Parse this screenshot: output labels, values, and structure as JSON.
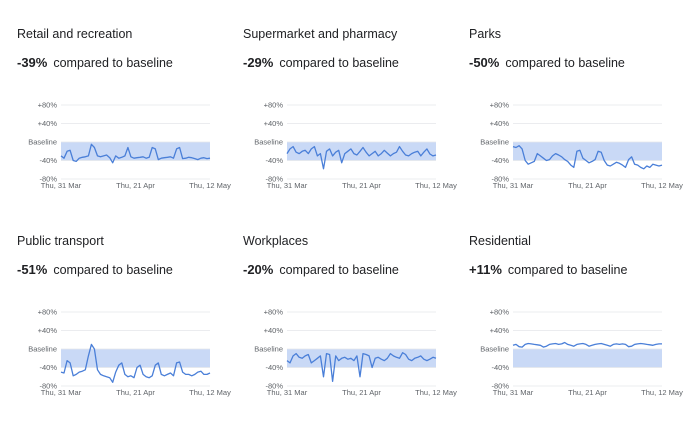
{
  "colors": {
    "line": "#4a7fd8",
    "band": "#c9d9f6",
    "grid": "#e4e6ea",
    "text": "#202124",
    "axis_text": "#5f6368"
  },
  "chart_data": [
    {
      "type": "line",
      "title": "Retail and recreation",
      "change": "-39%",
      "change_label": "compared to baseline",
      "y_tick_labels": [
        "+80%",
        "+40%",
        "Baseline",
        "-40%",
        "-80%"
      ],
      "y_ticks": [
        80,
        40,
        0,
        -40,
        -80
      ],
      "ylim": [
        -80,
        80
      ],
      "x_tick_labels": [
        "Thu, 31 Mar",
        "Thu, 21 Apr",
        "Thu, 12 May"
      ],
      "series": [
        {
          "values": [
            -30,
            -35,
            -20,
            -18,
            -40,
            -42,
            -35,
            -33,
            -32,
            -30,
            -5,
            -12,
            -30,
            -32,
            -30,
            -28,
            -34,
            -45,
            -30,
            -35,
            -33,
            -30,
            -12,
            -32,
            -35,
            -34,
            -33,
            -32,
            -35,
            -33,
            -12,
            -15,
            -38,
            -35,
            -34,
            -33,
            -32,
            -35,
            -15,
            -12,
            -36,
            -35,
            -33,
            -34,
            -36,
            -38,
            -35,
            -34,
            -36,
            -35
          ]
        }
      ]
    },
    {
      "type": "line",
      "title": "Supermarket and pharmacy",
      "change": "-29%",
      "change_label": "compared to baseline",
      "y_tick_labels": [
        "+80%",
        "+40%",
        "Baseline",
        "-40%",
        "-80%"
      ],
      "y_ticks": [
        80,
        40,
        0,
        -40,
        -80
      ],
      "ylim": [
        -80,
        80
      ],
      "x_tick_labels": [
        "Thu, 31 Mar",
        "Thu, 21 Apr",
        "Thu, 12 May"
      ],
      "series": [
        {
          "values": [
            -25,
            -15,
            -10,
            -22,
            -25,
            -20,
            -18,
            -25,
            -15,
            -10,
            -30,
            -25,
            -58,
            -20,
            -15,
            -30,
            -22,
            -18,
            -45,
            -25,
            -20,
            -15,
            -25,
            -28,
            -20,
            -12,
            -22,
            -30,
            -25,
            -20,
            -30,
            -25,
            -18,
            -24,
            -30,
            -25,
            -22,
            -10,
            -20,
            -28,
            -30,
            -25,
            -22,
            -20,
            -30,
            -22,
            -15,
            -26,
            -30,
            -28
          ]
        }
      ]
    },
    {
      "type": "line",
      "title": "Parks",
      "change": "-50%",
      "change_label": "compared to baseline",
      "y_tick_labels": [
        "+80%",
        "+40%",
        "Baseline",
        "-40%",
        "-80%"
      ],
      "y_ticks": [
        80,
        40,
        0,
        -40,
        -80
      ],
      "ylim": [
        -80,
        80
      ],
      "x_tick_labels": [
        "Thu, 31 Mar",
        "Thu, 21 Apr",
        "Thu, 12 May"
      ],
      "series": [
        {
          "values": [
            -10,
            -12,
            -8,
            -15,
            -40,
            -48,
            -45,
            -42,
            -25,
            -30,
            -35,
            -40,
            -38,
            -30,
            -25,
            -28,
            -32,
            -38,
            -42,
            -50,
            -55,
            -20,
            -18,
            -35,
            -40,
            -45,
            -42,
            -38,
            -20,
            -22,
            -40,
            -50,
            -52,
            -48,
            -44,
            -46,
            -50,
            -55,
            -38,
            -32,
            -48,
            -50,
            -55,
            -58,
            -52,
            -55,
            -48,
            -50,
            -52,
            -50
          ]
        }
      ]
    },
    {
      "type": "line",
      "title": "Public transport",
      "change": "-51%",
      "change_label": "compared to baseline",
      "y_tick_labels": [
        "+80%",
        "+40%",
        "Baseline",
        "-40%",
        "-80%"
      ],
      "y_ticks": [
        80,
        40,
        0,
        -40,
        -80
      ],
      "ylim": [
        -80,
        80
      ],
      "x_tick_labels": [
        "Thu, 31 Mar",
        "Thu, 21 Apr",
        "Thu, 12 May"
      ],
      "series": [
        {
          "values": [
            -50,
            -52,
            -25,
            -30,
            -58,
            -55,
            -50,
            -48,
            -45,
            -15,
            10,
            0,
            -45,
            -55,
            -58,
            -60,
            -62,
            -72,
            -50,
            -35,
            -30,
            -55,
            -60,
            -58,
            -62,
            -40,
            -35,
            -55,
            -60,
            -62,
            -58,
            -35,
            -30,
            -55,
            -58,
            -55,
            -52,
            -58,
            -30,
            -28,
            -50,
            -55,
            -55,
            -58,
            -55,
            -50,
            -48,
            -55,
            -55,
            -52
          ]
        }
      ]
    },
    {
      "type": "line",
      "title": "Workplaces",
      "change": "-20%",
      "change_label": "compared to baseline",
      "y_tick_labels": [
        "+80%",
        "+40%",
        "Baseline",
        "-40%",
        "-80%"
      ],
      "y_ticks": [
        80,
        40,
        0,
        -40,
        -80
      ],
      "ylim": [
        -80,
        80
      ],
      "x_tick_labels": [
        "Thu, 31 Mar",
        "Thu, 21 Apr",
        "Thu, 12 May"
      ],
      "series": [
        {
          "values": [
            -25,
            -30,
            -15,
            -10,
            -18,
            -20,
            -15,
            -12,
            -30,
            -25,
            -20,
            -15,
            -60,
            -10,
            -12,
            -70,
            -15,
            -25,
            -20,
            -18,
            -22,
            -20,
            -25,
            -15,
            -60,
            -10,
            -12,
            -15,
            -40,
            -20,
            -18,
            -22,
            -25,
            -20,
            -10,
            -15,
            -18,
            -20,
            -8,
            -12,
            -22,
            -25,
            -20,
            -18,
            -15,
            -22,
            -25,
            -22,
            -18,
            -20
          ]
        }
      ]
    },
    {
      "type": "line",
      "title": "Residential",
      "change": "+11%",
      "change_label": "compared to baseline",
      "y_tick_labels": [
        "+80%",
        "+40%",
        "Baseline",
        "-40%",
        "-80%"
      ],
      "y_ticks": [
        80,
        40,
        0,
        -40,
        -80
      ],
      "ylim": [
        -80,
        80
      ],
      "x_tick_labels": [
        "Thu, 31 Mar",
        "Thu, 21 Apr",
        "Thu, 12 May"
      ],
      "series": [
        {
          "values": [
            8,
            10,
            5,
            4,
            10,
            12,
            11,
            10,
            9,
            8,
            4,
            6,
            10,
            11,
            12,
            10,
            11,
            14,
            10,
            8,
            6,
            10,
            11,
            12,
            10,
            6,
            8,
            10,
            11,
            12,
            10,
            8,
            6,
            10,
            11,
            10,
            11,
            10,
            5,
            6,
            10,
            11,
            12,
            11,
            10,
            9,
            8,
            10,
            11,
            11
          ]
        }
      ]
    }
  ]
}
